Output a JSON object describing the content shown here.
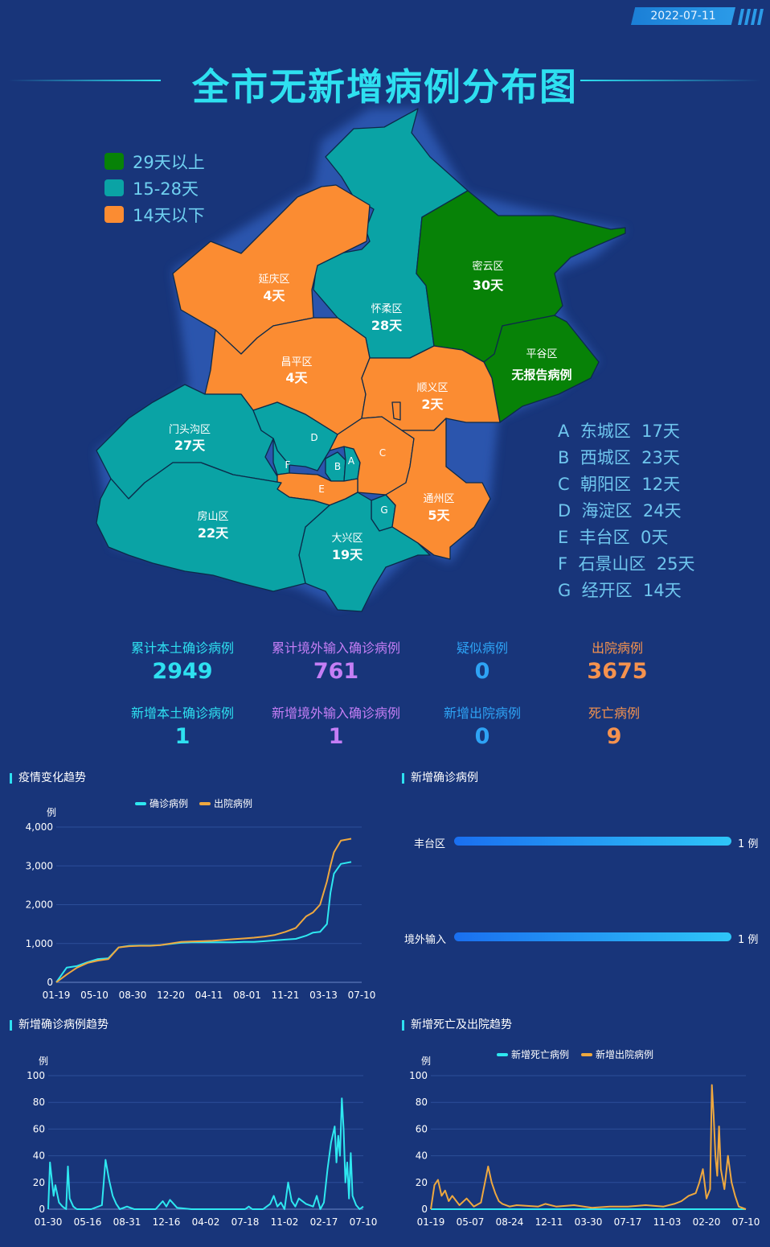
{
  "date": "2022-07-11",
  "title": "全市无新增病例分布图",
  "legend": [
    {
      "label": "29天以上",
      "color": "#078207"
    },
    {
      "label": "15-28天",
      "color": "#0aa3a5"
    },
    {
      "label": "14天以下",
      "color": "#fb8c32"
    }
  ],
  "districts": [
    {
      "name": "延庆区",
      "days": "4天"
    },
    {
      "name": "怀柔区",
      "days": "28天"
    },
    {
      "name": "密云区",
      "days": "30天"
    },
    {
      "name": "平谷区",
      "days": "无报告病例"
    },
    {
      "name": "昌平区",
      "days": "4天"
    },
    {
      "name": "顺义区",
      "days": "2天"
    },
    {
      "name": "门头沟区",
      "days": "27天"
    },
    {
      "name": "房山区",
      "days": "22天"
    },
    {
      "name": "大兴区",
      "days": "19天"
    },
    {
      "name": "通州区",
      "days": "5天"
    }
  ],
  "map_letters": [
    "A",
    "B",
    "C",
    "D",
    "E",
    "F",
    "G"
  ],
  "key_list": [
    {
      "letter": "A",
      "name": "东城区",
      "days": "17天"
    },
    {
      "letter": "B",
      "name": "西城区",
      "days": "23天"
    },
    {
      "letter": "C",
      "name": "朝阳区",
      "days": "12天"
    },
    {
      "letter": "D",
      "name": "海淀区",
      "days": "24天"
    },
    {
      "letter": "E",
      "name": "丰台区",
      "days": "0天"
    },
    {
      "letter": "F",
      "name": "石景山区",
      "days": "25天"
    },
    {
      "letter": "G",
      "name": "经开区",
      "days": "14天"
    }
  ],
  "stats": [
    {
      "label": "累计本土确诊病例",
      "value": "2949",
      "color": "#2ee0f0"
    },
    {
      "label": "累计境外输入确诊病例",
      "value": "761",
      "color": "#c47ef5"
    },
    {
      "label": "疑似病例",
      "value": "0",
      "color": "#2ea3f5"
    },
    {
      "label": "出院病例",
      "value": "3675",
      "color": "#f5924e"
    },
    {
      "label": "新增本土确诊病例",
      "value": "1",
      "color": "#2ee0f0"
    },
    {
      "label": "新增境外输入确诊病例",
      "value": "1",
      "color": "#c47ef5"
    },
    {
      "label": "新增出院病例",
      "value": "0",
      "color": "#2ea3f5"
    },
    {
      "label": "死亡病例",
      "value": "9",
      "color": "#f5924e"
    }
  ],
  "panels": {
    "trend": "疫情变化趋势",
    "new_confirmed": "新增确诊病例",
    "new_trend": "新增确诊病例趋势",
    "death_discharge": "新增死亡及出院趋势"
  },
  "colors": {
    "cyan": "#2ee8f0",
    "orange": "#eea83f"
  },
  "chart_data": [
    {
      "type": "line",
      "ylabel": "例",
      "ylim": [
        0,
        4000
      ],
      "yticks": [
        "0",
        "1,000",
        "2,000",
        "3,000",
        "4,000"
      ],
      "xticks": [
        "01-19",
        "05-10",
        "08-30",
        "12-20",
        "04-11",
        "08-01",
        "11-21",
        "03-13",
        "07-10"
      ],
      "series": [
        {
          "name": "确诊病例",
          "color": "#2ee8f0",
          "x": [
            0,
            0.3,
            0.6,
            0.9,
            1.2,
            1.5,
            1.8,
            2.1,
            2.4,
            2.7,
            3,
            3.3,
            3.6,
            3.9,
            4.2,
            4.5,
            4.8,
            5.1,
            5.4,
            5.7,
            6,
            6.3,
            6.6,
            6.9,
            7.2,
            7.4,
            7.6,
            7.8,
            7.9,
            8,
            8.2,
            8.5
          ],
          "y": [
            0,
            380,
            420,
            520,
            600,
            620,
            900,
            940,
            950,
            950,
            960,
            990,
            1020,
            1030,
            1030,
            1030,
            1030,
            1030,
            1040,
            1040,
            1060,
            1080,
            1100,
            1120,
            1200,
            1280,
            1300,
            1500,
            2300,
            2800,
            3050,
            3100
          ]
        },
        {
          "name": "出院病例",
          "color": "#eea83f",
          "x": [
            0,
            0.3,
            0.6,
            0.9,
            1.2,
            1.5,
            1.8,
            2.1,
            2.4,
            2.7,
            3,
            3.3,
            3.6,
            3.9,
            4.2,
            4.5,
            4.8,
            5.1,
            5.4,
            5.7,
            6,
            6.3,
            6.6,
            6.9,
            7.2,
            7.4,
            7.6,
            7.8,
            7.9,
            8,
            8.2,
            8.5
          ],
          "y": [
            0,
            200,
            380,
            500,
            560,
            600,
            900,
            930,
            940,
            940,
            960,
            1000,
            1040,
            1050,
            1060,
            1070,
            1090,
            1110,
            1130,
            1150,
            1180,
            1220,
            1300,
            1400,
            1700,
            1800,
            2000,
            2600,
            3000,
            3350,
            3650,
            3700
          ]
        }
      ]
    },
    {
      "type": "bar",
      "categories": [
        "丰台区",
        "境外输入"
      ],
      "values": [
        1,
        1
      ],
      "value_labels": [
        "1 例",
        "1 例"
      ]
    },
    {
      "type": "line",
      "ylabel": "例",
      "ylim": [
        0,
        100
      ],
      "yticks": [
        "0",
        "20",
        "40",
        "60",
        "80",
        "100"
      ],
      "xticks": [
        "01-30",
        "05-16",
        "08-31",
        "12-16",
        "04-02",
        "07-18",
        "11-02",
        "02-17",
        "07-10"
      ],
      "series": [
        {
          "name": "新增确诊病例",
          "color": "#2ee8f0",
          "x": [
            0,
            0.05,
            0.1,
            0.15,
            0.2,
            0.3,
            0.4,
            0.5,
            0.55,
            0.6,
            0.7,
            0.8,
            0.9,
            1.0,
            1.2,
            1.5,
            1.6,
            1.7,
            1.8,
            1.9,
            2.0,
            2.2,
            2.4,
            3.0,
            3.2,
            3.3,
            3.4,
            3.6,
            4.0,
            4.5,
            5.0,
            5.5,
            5.6,
            5.7,
            6.0,
            6.2,
            6.3,
            6.4,
            6.5,
            6.6,
            6.7,
            6.8,
            6.9,
            7.0,
            7.2,
            7.4,
            7.5,
            7.6,
            7.7,
            7.8,
            7.9,
            8.0,
            8.05,
            8.1,
            8.15,
            8.2,
            8.25,
            8.3,
            8.35,
            8.4,
            8.45,
            8.5,
            8.6,
            8.7,
            8.8
          ],
          "y": [
            0,
            35,
            22,
            10,
            18,
            5,
            2,
            0,
            32,
            8,
            2,
            0,
            0,
            0,
            0,
            3,
            37,
            22,
            10,
            4,
            0,
            2,
            0,
            0,
            6,
            2,
            7,
            1,
            0,
            0,
            0,
            0,
            2,
            0,
            0,
            4,
            10,
            2,
            5,
            0,
            20,
            6,
            2,
            8,
            4,
            2,
            10,
            0,
            5,
            30,
            50,
            62,
            35,
            55,
            40,
            83,
            60,
            20,
            35,
            8,
            42,
            10,
            3,
            0,
            2
          ]
        }
      ]
    },
    {
      "type": "line",
      "ylabel": "例",
      "ylim": [
        0,
        100
      ],
      "yticks": [
        "0",
        "20",
        "40",
        "60",
        "80",
        "100"
      ],
      "xticks": [
        "01-19",
        "05-07",
        "08-24",
        "12-11",
        "03-30",
        "07-17",
        "11-03",
        "02-20",
        "07-10"
      ],
      "series": [
        {
          "name": "新增死亡病例",
          "color": "#2ee8f0",
          "x": [
            0,
            8.8
          ],
          "y": [
            0,
            0
          ]
        },
        {
          "name": "新增出院病例",
          "color": "#eea83f",
          "x": [
            0,
            0.1,
            0.2,
            0.3,
            0.4,
            0.5,
            0.6,
            0.8,
            1.0,
            1.2,
            1.4,
            1.6,
            1.7,
            1.8,
            1.9,
            2.0,
            2.2,
            2.4,
            3.0,
            3.2,
            3.5,
            4.0,
            4.5,
            5.0,
            5.5,
            6.0,
            6.5,
            6.8,
            7.0,
            7.2,
            7.4,
            7.5,
            7.6,
            7.7,
            7.8,
            7.85,
            7.9,
            7.95,
            8.0,
            8.05,
            8.1,
            8.2,
            8.3,
            8.4,
            8.5,
            8.6,
            8.8
          ],
          "y": [
            0,
            18,
            22,
            10,
            14,
            6,
            10,
            3,
            8,
            2,
            5,
            32,
            20,
            12,
            6,
            4,
            2,
            3,
            2,
            4,
            2,
            3,
            1,
            2,
            2,
            3,
            2,
            4,
            6,
            10,
            12,
            20,
            30,
            8,
            15,
            93,
            70,
            40,
            25,
            62,
            30,
            15,
            40,
            20,
            10,
            2,
            0
          ]
        }
      ]
    }
  ]
}
